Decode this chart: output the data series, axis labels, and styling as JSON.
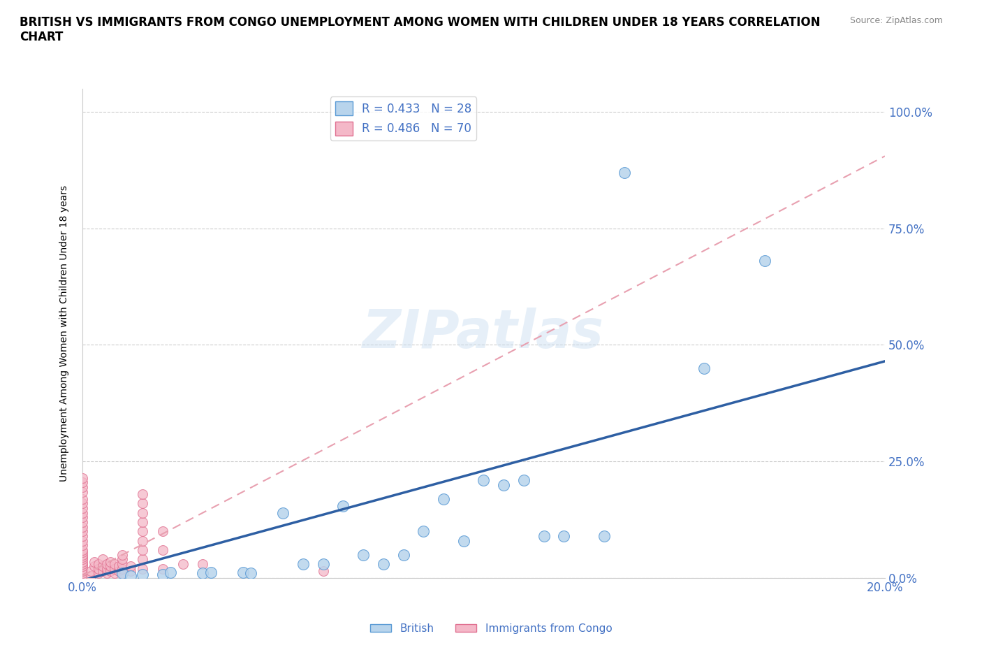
{
  "title": "BRITISH VS IMMIGRANTS FROM CONGO UNEMPLOYMENT AMONG WOMEN WITH CHILDREN UNDER 18 YEARS CORRELATION\nCHART",
  "source": "Source: ZipAtlas.com",
  "ylabel": "Unemployment Among Women with Children Under 18 years",
  "xlim": [
    0.0,
    0.2
  ],
  "ylim": [
    0.0,
    1.05
  ],
  "ytick_labels": [
    "0.0%",
    "25.0%",
    "50.0%",
    "75.0%",
    "100.0%"
  ],
  "ytick_vals": [
    0.0,
    0.25,
    0.5,
    0.75,
    1.0
  ],
  "xtick_vals": [
    0.0,
    0.05,
    0.1,
    0.15,
    0.2
  ],
  "british_fill_color": "#b8d4ec",
  "british_edge_color": "#5b9bd5",
  "congo_fill_color": "#f4b8c8",
  "congo_edge_color": "#e07090",
  "british_line_color": "#2e5fa3",
  "congo_line_color": "#e8a0b0",
  "tick_label_color": "#4472c4",
  "background_color": "#ffffff",
  "watermark": "ZIPatlas",
  "legend_R_british": "R = 0.433",
  "legend_N_british": "N = 28",
  "legend_R_congo": "R = 0.486",
  "legend_N_congo": "N = 70",
  "british_scatter": [
    [
      0.01,
      0.01
    ],
    [
      0.012,
      0.005
    ],
    [
      0.015,
      0.008
    ],
    [
      0.02,
      0.008
    ],
    [
      0.022,
      0.012
    ],
    [
      0.03,
      0.01
    ],
    [
      0.032,
      0.012
    ],
    [
      0.04,
      0.012
    ],
    [
      0.042,
      0.01
    ],
    [
      0.05,
      0.14
    ],
    [
      0.055,
      0.03
    ],
    [
      0.06,
      0.03
    ],
    [
      0.065,
      0.155
    ],
    [
      0.07,
      0.05
    ],
    [
      0.075,
      0.03
    ],
    [
      0.08,
      0.05
    ],
    [
      0.085,
      0.1
    ],
    [
      0.09,
      0.17
    ],
    [
      0.095,
      0.08
    ],
    [
      0.1,
      0.21
    ],
    [
      0.105,
      0.2
    ],
    [
      0.11,
      0.21
    ],
    [
      0.115,
      0.09
    ],
    [
      0.12,
      0.09
    ],
    [
      0.13,
      0.09
    ],
    [
      0.135,
      0.87
    ],
    [
      0.155,
      0.45
    ],
    [
      0.17,
      0.68
    ]
  ],
  "congo_scatter": [
    [
      0.0,
      0.005
    ],
    [
      0.0,
      0.01
    ],
    [
      0.0,
      0.015
    ],
    [
      0.0,
      0.02
    ],
    [
      0.0,
      0.025
    ],
    [
      0.0,
      0.03
    ],
    [
      0.0,
      0.035
    ],
    [
      0.0,
      0.04
    ],
    [
      0.0,
      0.045
    ],
    [
      0.0,
      0.05
    ],
    [
      0.0,
      0.055
    ],
    [
      0.0,
      0.06
    ],
    [
      0.0,
      0.07
    ],
    [
      0.0,
      0.08
    ],
    [
      0.0,
      0.09
    ],
    [
      0.0,
      0.1
    ],
    [
      0.0,
      0.11
    ],
    [
      0.0,
      0.12
    ],
    [
      0.0,
      0.13
    ],
    [
      0.0,
      0.14
    ],
    [
      0.0,
      0.15
    ],
    [
      0.0,
      0.16
    ],
    [
      0.0,
      0.17
    ],
    [
      0.0,
      0.185
    ],
    [
      0.0,
      0.195
    ],
    [
      0.0,
      0.205
    ],
    [
      0.0,
      0.215
    ],
    [
      0.002,
      0.005
    ],
    [
      0.002,
      0.015
    ],
    [
      0.003,
      0.025
    ],
    [
      0.003,
      0.035
    ],
    [
      0.004,
      0.01
    ],
    [
      0.004,
      0.02
    ],
    [
      0.004,
      0.03
    ],
    [
      0.005,
      0.015
    ],
    [
      0.005,
      0.025
    ],
    [
      0.005,
      0.04
    ],
    [
      0.006,
      0.01
    ],
    [
      0.006,
      0.02
    ],
    [
      0.006,
      0.03
    ],
    [
      0.007,
      0.015
    ],
    [
      0.007,
      0.025
    ],
    [
      0.007,
      0.035
    ],
    [
      0.008,
      0.01
    ],
    [
      0.008,
      0.02
    ],
    [
      0.008,
      0.03
    ],
    [
      0.009,
      0.015
    ],
    [
      0.009,
      0.025
    ],
    [
      0.01,
      0.01
    ],
    [
      0.01,
      0.02
    ],
    [
      0.01,
      0.03
    ],
    [
      0.01,
      0.04
    ],
    [
      0.01,
      0.05
    ],
    [
      0.012,
      0.015
    ],
    [
      0.012,
      0.025
    ],
    [
      0.015,
      0.02
    ],
    [
      0.015,
      0.04
    ],
    [
      0.015,
      0.06
    ],
    [
      0.015,
      0.08
    ],
    [
      0.015,
      0.1
    ],
    [
      0.015,
      0.12
    ],
    [
      0.015,
      0.14
    ],
    [
      0.015,
      0.16
    ],
    [
      0.015,
      0.18
    ],
    [
      0.02,
      0.02
    ],
    [
      0.02,
      0.06
    ],
    [
      0.02,
      0.1
    ],
    [
      0.025,
      0.03
    ],
    [
      0.03,
      0.03
    ],
    [
      0.06,
      0.015
    ]
  ],
  "british_slope": 2.35,
  "british_intercept": -0.005,
  "congo_slope": 4.5,
  "congo_intercept": 0.005
}
